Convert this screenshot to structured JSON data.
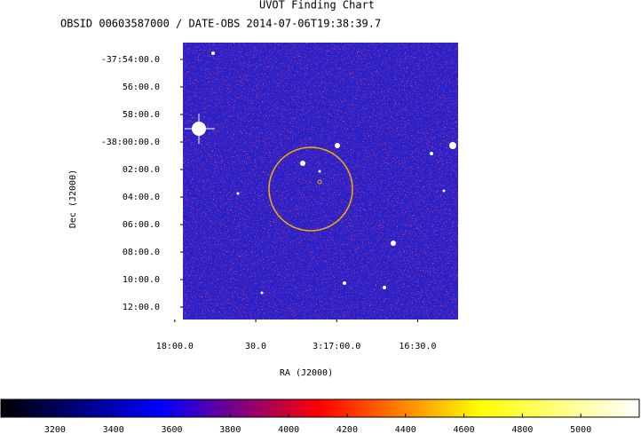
{
  "chart_data": {
    "type": "image",
    "title": "UVOT Finding Chart",
    "subtitle": "OBSID 00603587000 / DATE-OBS 2014-07-06T19:38:39.7",
    "xlabel": "RA (J2000)",
    "ylabel": "Dec (J2000)",
    "xlim": [
      11877,
      11775
    ],
    "xticks": [
      {
        "value": 11880,
        "label": "18:00.0"
      },
      {
        "value": 11850,
        "label": "30.0"
      },
      {
        "value": 11820,
        "label": "3:17:00.0"
      },
      {
        "value": 11790,
        "label": "16:30.0"
      }
    ],
    "ylim": [
      -38.215,
      -37.8796
    ],
    "yticks": [
      {
        "value": -37.9,
        "label": "-37:54:00.0"
      },
      {
        "value": -37.9333,
        "label": "56:00.0"
      },
      {
        "value": -37.9667,
        "label": "58:00.0"
      },
      {
        "value": -38.0,
        "label": "-38:00:00.0"
      },
      {
        "value": -38.0333,
        "label": "02:00.0"
      },
      {
        "value": -38.0667,
        "label": "04:00.0"
      },
      {
        "value": -38.1,
        "label": "06:00.0"
      },
      {
        "value": -38.1333,
        "label": "08:00.0"
      },
      {
        "value": -38.1667,
        "label": "10:00.0"
      },
      {
        "value": -38.2,
        "label": "12:00.0"
      }
    ],
    "colorbar": {
      "lim": [
        3015,
        5200
      ],
      "ticks": [
        3200,
        3400,
        3600,
        3800,
        4000,
        4200,
        4400,
        4600,
        4800,
        5000
      ],
      "colormap": [
        "#000000",
        "#0000ff",
        "#ff0000",
        "#ffff00",
        "#ffffff"
      ]
    }
  }
}
